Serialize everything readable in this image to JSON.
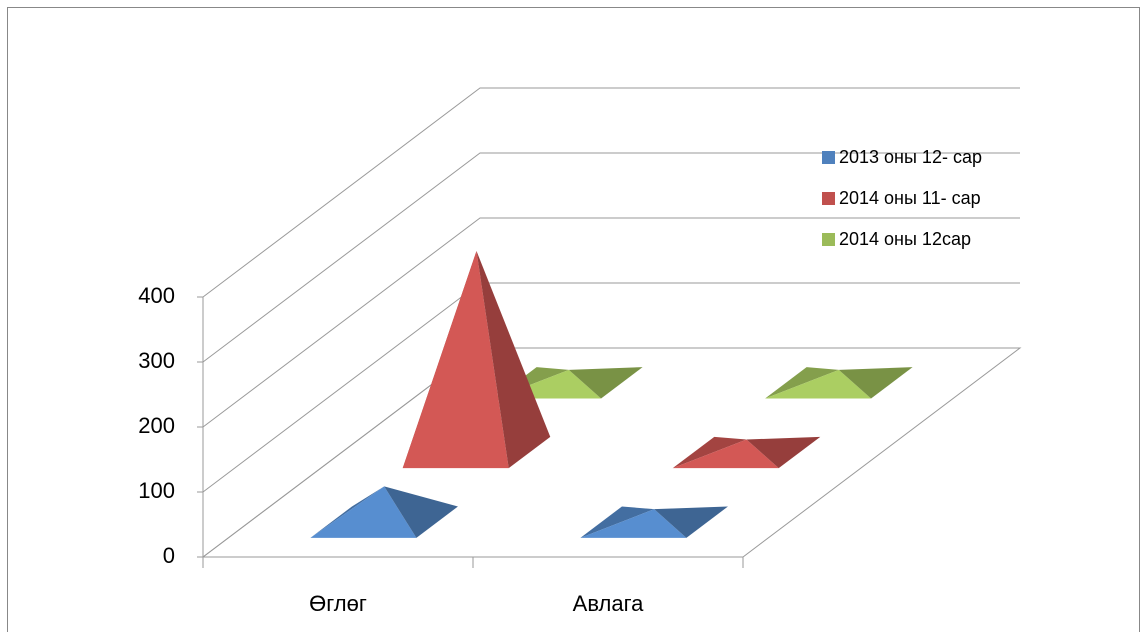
{
  "chart_data": {
    "type": "pyramid3d",
    "categories": [
      "Өглөг",
      "Авлага"
    ],
    "series": [
      {
        "name": "2013 оны 12- сар",
        "color": "#4f81bd",
        "values": [
          55,
          20
        ]
      },
      {
        "name": "2014 оны 11- сар",
        "color": "#c0504d",
        "values": [
          310,
          20
        ]
      },
      {
        "name": "2014 оны 12сар",
        "color": "#9bbb59",
        "values": [
          20,
          20
        ]
      }
    ],
    "ylim": [
      0,
      400
    ],
    "yticks": [
      0,
      100,
      200,
      300,
      400
    ],
    "grid": true,
    "legend": "upper right"
  }
}
